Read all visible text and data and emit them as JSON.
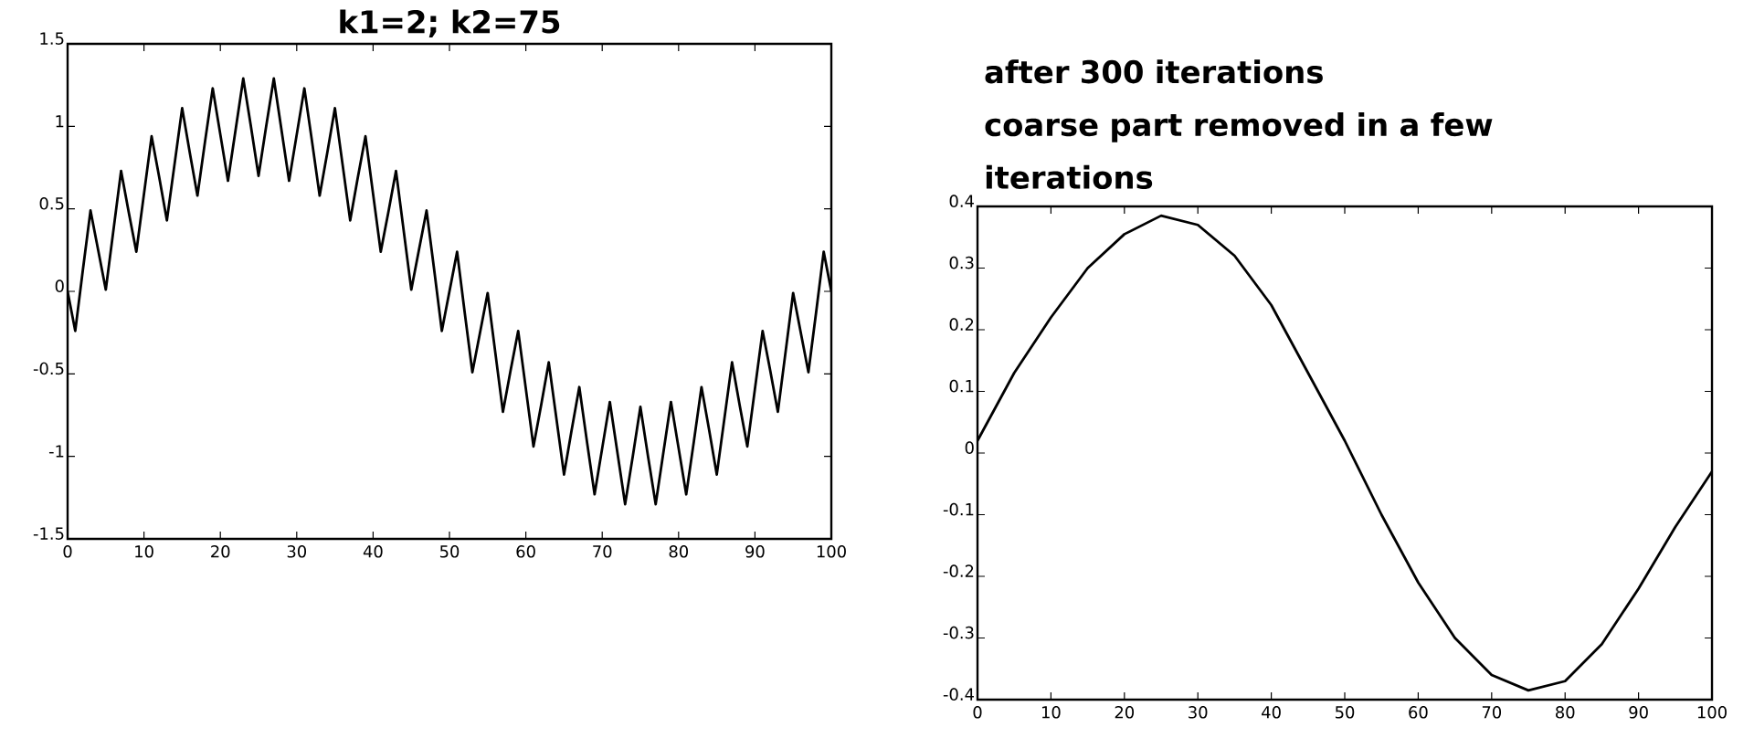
{
  "chart_data": [
    {
      "type": "line",
      "title": "k1=2; k2=75",
      "x": [
        0,
        1,
        2,
        3,
        4,
        5,
        6,
        7,
        8,
        9,
        10,
        11,
        12,
        13,
        14,
        15,
        16,
        17,
        18,
        19,
        20,
        21,
        22,
        23,
        24,
        25,
        26,
        27,
        28,
        29,
        30,
        31,
        32,
        33,
        34,
        35,
        36,
        37,
        38,
        39,
        40,
        41,
        42,
        43,
        44,
        45,
        46,
        47,
        48,
        49,
        50,
        51,
        52,
        53,
        54,
        55,
        56,
        57,
        58,
        59,
        60,
        61,
        62,
        63,
        64,
        65,
        66,
        67,
        68,
        69,
        70,
        71,
        72,
        73,
        74,
        75,
        76,
        77,
        78,
        79,
        80,
        81,
        82,
        83,
        84,
        85,
        86,
        87,
        88,
        89,
        90,
        91,
        92,
        93,
        94,
        95,
        96,
        97,
        98,
        99,
        100
      ],
      "series": [
        {
          "color": "#000000",
          "values": [
            0,
            -0.24,
            0.13,
            0.49,
            0.25,
            0.01,
            0.37,
            0.73,
            0.48,
            0.24,
            0.59,
            0.94,
            0.69,
            0.43,
            0.77,
            1.11,
            0.84,
            0.58,
            0.91,
            1.23,
            0.95,
            0.67,
            0.98,
            1.29,
            1.0,
            0.7,
            1.0,
            1.29,
            0.98,
            0.67,
            0.95,
            1.23,
            0.91,
            0.58,
            0.84,
            1.11,
            0.77,
            0.43,
            0.69,
            0.94,
            0.59,
            0.24,
            0.48,
            0.73,
            0.37,
            0.01,
            0.25,
            0.49,
            0.13,
            -0.24,
            0,
            0.24,
            -0.13,
            -0.49,
            -0.25,
            -0.01,
            -0.37,
            -0.73,
            -0.48,
            -0.24,
            -0.59,
            -0.94,
            -0.69,
            -0.43,
            -0.77,
            -1.11,
            -0.84,
            -0.58,
            -0.91,
            -1.23,
            -0.95,
            -0.67,
            -0.98,
            -1.29,
            -1.0,
            -0.7,
            -1.0,
            -1.29,
            -0.98,
            -0.67,
            -0.95,
            -1.23,
            -0.91,
            -0.58,
            -0.84,
            -1.11,
            -0.77,
            -0.43,
            -0.69,
            -0.94,
            -0.59,
            -0.24,
            -0.48,
            -0.73,
            -0.37,
            -0.01,
            -0.25,
            -0.49,
            -0.13,
            0.24,
            0
          ]
        }
      ],
      "xlim": [
        0,
        100
      ],
      "ylim": [
        -1.5,
        1.5
      ],
      "xticks": [
        0,
        10,
        20,
        30,
        40,
        50,
        60,
        70,
        80,
        90,
        100
      ],
      "yticks": [
        -1.5,
        -1,
        -0.5,
        0,
        0.5,
        1,
        1.5
      ],
      "grid": false,
      "marker": "none",
      "line_style": "solid"
    },
    {
      "type": "line",
      "title": "after 300 iterations",
      "subtitle": "coarse part removed in a few iterations",
      "x": [
        0,
        5,
        10,
        15,
        20,
        25,
        30,
        35,
        40,
        45,
        50,
        55,
        60,
        65,
        70,
        75,
        80,
        85,
        90,
        95,
        100
      ],
      "series": [
        {
          "color": "#000000",
          "values": [
            0.02,
            0.13,
            0.22,
            0.3,
            0.355,
            0.385,
            0.37,
            0.32,
            0.24,
            0.13,
            0.02,
            -0.1,
            -0.21,
            -0.3,
            -0.36,
            -0.385,
            -0.37,
            -0.31,
            -0.22,
            -0.12,
            -0.03
          ]
        }
      ],
      "xlim": [
        0,
        100
      ],
      "ylim": [
        -0.4,
        0.4
      ],
      "xticks": [
        0,
        10,
        20,
        30,
        40,
        50,
        60,
        70,
        80,
        90,
        100
      ],
      "yticks": [
        -0.4,
        -0.3,
        -0.2,
        -0.1,
        0,
        0.1,
        0.2,
        0.3,
        0.4
      ],
      "grid": false,
      "marker": "none",
      "line_style": "solid"
    }
  ]
}
